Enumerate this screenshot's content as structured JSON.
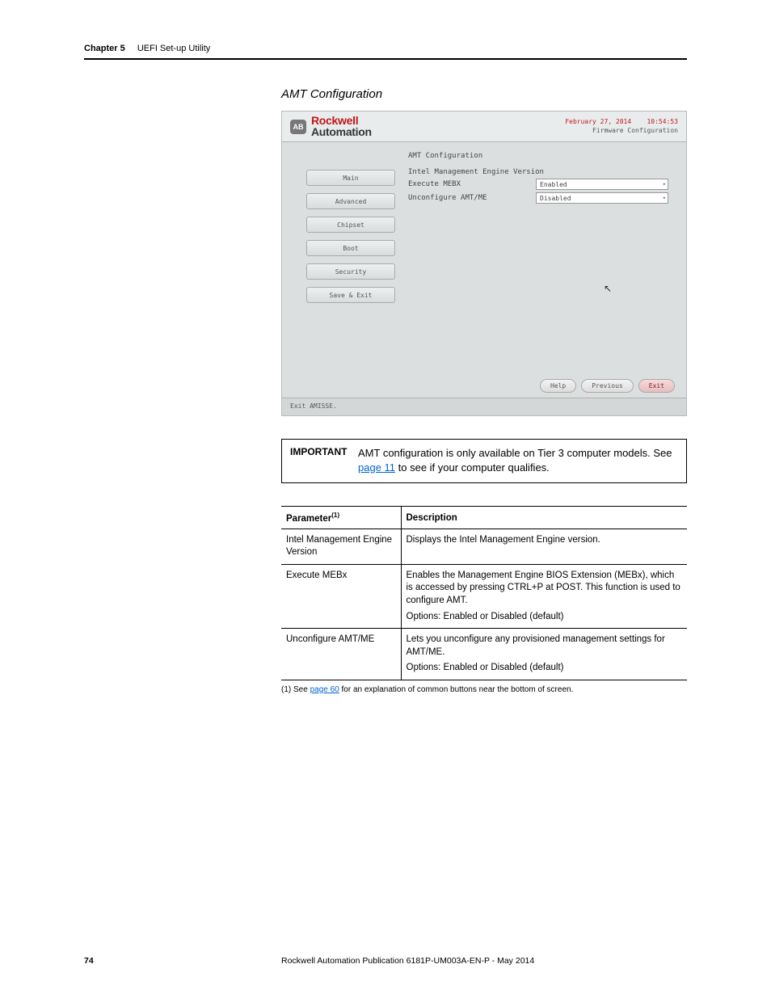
{
  "header": {
    "chapter": "Chapter 5",
    "title": "UEFI Set-up Utility"
  },
  "section": {
    "title": "AMT Configuration"
  },
  "bios": {
    "brand": {
      "badge": "AB",
      "line1": "Rockwell",
      "line2": "Automation"
    },
    "date": "February 27, 2014",
    "time": "10:54:53",
    "subtitle": "Firmware Configuration",
    "nav": [
      "Main",
      "Advanced",
      "Chipset",
      "Boot",
      "Security",
      "Save & Exit"
    ],
    "content_title": "AMT Configuration",
    "fields": {
      "ime_label": "Intel Management Engine Version",
      "exec_label": "Execute MEBX",
      "exec_value": "Enabled",
      "uncfg_label": "Unconfigure AMT/ME",
      "uncfg_value": "Disabled"
    },
    "footer_btns": {
      "help": "Help",
      "prev": "Previous",
      "exit": "Exit"
    },
    "status": "Exit AMISSE."
  },
  "important": {
    "label": "IMPORTANT",
    "text_a": "AMT configuration is only available on Tier 3 computer models. See ",
    "link": "page 11",
    "text_b": " to see if your computer qualifies."
  },
  "table": {
    "head_param": "Parameter",
    "head_param_sup": "(1)",
    "head_desc": "Description",
    "rows": [
      {
        "p": "Intel Management Engine Version",
        "d": [
          "Displays the Intel Management Engine version."
        ]
      },
      {
        "p": "Execute MEBx",
        "d": [
          "Enables the Management Engine BIOS Extension (MEBx), which is accessed by pressing CTRL+P at POST. This function is used to configure AMT.",
          "Options: Enabled or Disabled (default)"
        ]
      },
      {
        "p": "Unconfigure AMT/ME",
        "d": [
          "Lets you unconfigure any provisioned management settings for AMT/ME.",
          "Options: Enabled or Disabled (default)"
        ]
      }
    ]
  },
  "footnote": {
    "prefix": "(1)   See ",
    "link": "page 60",
    "suffix": " for an explanation of common buttons near the bottom of screen."
  },
  "footer": {
    "page": "74",
    "pub": "Rockwell Automation Publication 6181P-UM003A-EN-P - May 2014"
  }
}
